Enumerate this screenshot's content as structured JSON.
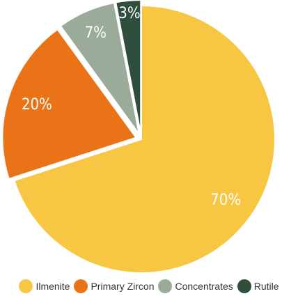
{
  "chart_data": {
    "type": "pie",
    "categories": [
      "Ilmenite",
      "Primary Zircon",
      "Concentrates",
      "Rutile"
    ],
    "values": [
      70,
      20,
      7,
      3
    ],
    "value_labels": [
      "70%",
      "20%",
      "7%",
      "3%"
    ],
    "colors": [
      "#f7c744",
      "#ea7317",
      "#9aab9a",
      "#2f4e3b"
    ],
    "legend": "bottom"
  }
}
